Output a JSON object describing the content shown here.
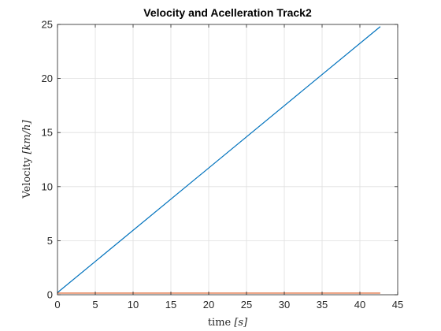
{
  "chart_data": {
    "type": "line",
    "title": "Velocity and Acelleration Track2",
    "xlabel": {
      "text": "time ",
      "math": "[s]"
    },
    "ylabel": {
      "text": "Velocity ",
      "math": "[km/h]"
    },
    "xlim": [
      0,
      45
    ],
    "ylim": [
      0,
      25
    ],
    "xticks": [
      0,
      5,
      10,
      15,
      20,
      25,
      30,
      35,
      40,
      45
    ],
    "yticks": [
      0,
      5,
      10,
      15,
      20,
      25
    ],
    "grid": true,
    "series": [
      {
        "color": "#0072BD",
        "x": [
          0,
          42.7
        ],
        "y": [
          0.2,
          24.8
        ]
      },
      {
        "color": "#D95319",
        "x": [
          0,
          42.7
        ],
        "y": [
          0.15,
          0.15
        ]
      }
    ]
  }
}
